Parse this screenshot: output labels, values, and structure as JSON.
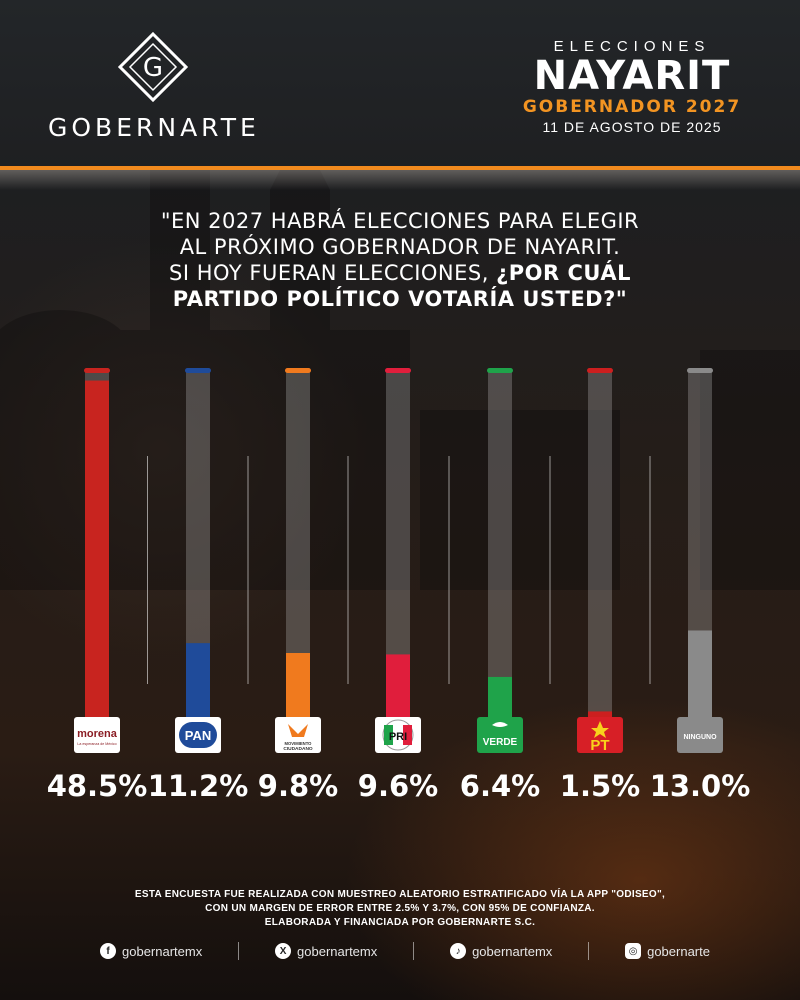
{
  "header": {
    "brand_letter": "G",
    "brand_name": "GOBERNARTE",
    "elections_label": "ELECCIONES",
    "state": "NAYARIT",
    "office": "GOBERNADOR 2027",
    "date": "11 DE AGOSTO DE 2025"
  },
  "question": {
    "line1": "\"EN 2027 HABRÁ ELECCIONES PARA ELEGIR",
    "line2": "AL PRÓXIMO GOBERNADOR DE NAYARIT.",
    "line3": "SI HOY FUERAN ELECCIONES,",
    "line3_bold": "¿POR CUÁL",
    "line4_bold": "PARTIDO POLÍTICO VOTARÍA USTED?\""
  },
  "chart_data": {
    "type": "bar",
    "categories": [
      "morena",
      "PAN",
      "MOVIMIENTO CIUDADANO",
      "PRI",
      "VERDE",
      "PT",
      "NINGUNO"
    ],
    "values": [
      48.5,
      11.2,
      9.8,
      9.6,
      6.4,
      1.5,
      13.0
    ],
    "labels": [
      "48.5%",
      "11.2%",
      "9.8%",
      "9.6%",
      "6.4%",
      "1.5%",
      "13.0%"
    ],
    "colors": [
      "#c8241f",
      "#1f4b9a",
      "#f07a1e",
      "#e01e3c",
      "#1fa34a",
      "#cc1f1f",
      "#8a8a8a"
    ],
    "ylim": [
      0,
      50
    ],
    "grid": false
  },
  "logos": {
    "morena": {
      "name": "morena",
      "tagline": "La esperanza de México"
    },
    "pan": {
      "name": "PAN"
    },
    "mc": {
      "name": "MOVIMIENTO CIUDADANO"
    },
    "pri": {
      "name": "PRI"
    },
    "verde": {
      "name": "VERDE"
    },
    "pt": {
      "name": "PT"
    },
    "ninguno": {
      "name": "NINGUNO"
    }
  },
  "footnote": {
    "line1": "ESTA ENCUESTA FUE REALIZADA CON MUESTREO ALEATORIO ESTRATIFICADO VÍA LA APP \"ODISEO\",",
    "line2": "CON UN MARGEN DE ERROR ENTRE 2.5% Y 3.7%, CON 95% DE CONFIANZA.",
    "line3": "ELABORADA Y FINANCIADA POR GOBERNARTE S.C."
  },
  "socials": [
    {
      "icon": "facebook-icon",
      "glyph": "f",
      "handle": "gobernartemx"
    },
    {
      "icon": "x-icon",
      "glyph": "X",
      "handle": "gobernartemx"
    },
    {
      "icon": "tiktok-icon",
      "glyph": "♪",
      "handle": "gobernartemx"
    },
    {
      "icon": "instagram-icon",
      "glyph": "◎",
      "handle": "gobernarte"
    }
  ]
}
